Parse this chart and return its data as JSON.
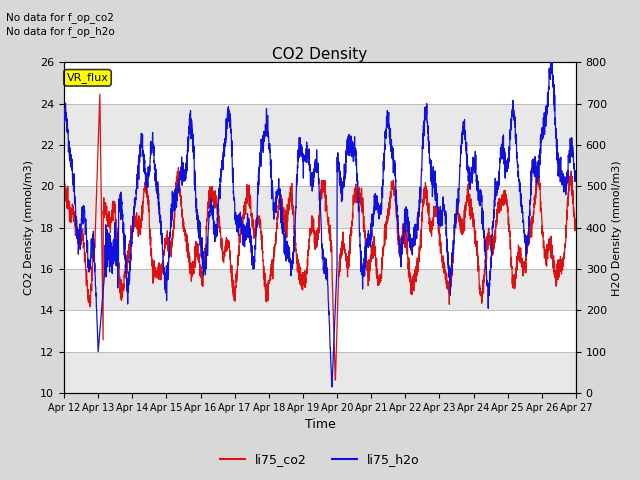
{
  "title": "CO2 Density",
  "xlabel": "Time",
  "ylabel_left": "CO2 Density (mmol/m3)",
  "ylabel_right": "H2O Density (mmol/m3)",
  "ylim_left": [
    10,
    26
  ],
  "ylim_right": [
    0,
    800
  ],
  "yticks_left": [
    10,
    12,
    14,
    16,
    18,
    20,
    22,
    24,
    26
  ],
  "yticks_right": [
    0,
    100,
    200,
    300,
    400,
    500,
    600,
    700,
    800
  ],
  "xtick_labels": [
    "Apr 12",
    "Apr 13",
    "Apr 14",
    "Apr 15",
    "Apr 16",
    "Apr 17",
    "Apr 18",
    "Apr 19",
    "Apr 20",
    "Apr 21",
    "Apr 22",
    "Apr 23",
    "Apr 24",
    "Apr 25",
    "Apr 26",
    "Apr 27"
  ],
  "text_no_data_co2": "No data for f_op_co2",
  "text_no_data_h2o": "No data for f_op_h2o",
  "legend_label_co2": "li75_co2",
  "legend_label_h2o": "li75_h2o",
  "color_co2": "#dd1111",
  "color_h2o": "#1111dd",
  "vr_flux_box_color": "#ffff00",
  "vr_flux_text": "VR_flux",
  "background_color": "#d8d8d8",
  "plot_bg_color": "#ffffff",
  "band_color": "#e8e8e8",
  "linewidth": 0.9
}
